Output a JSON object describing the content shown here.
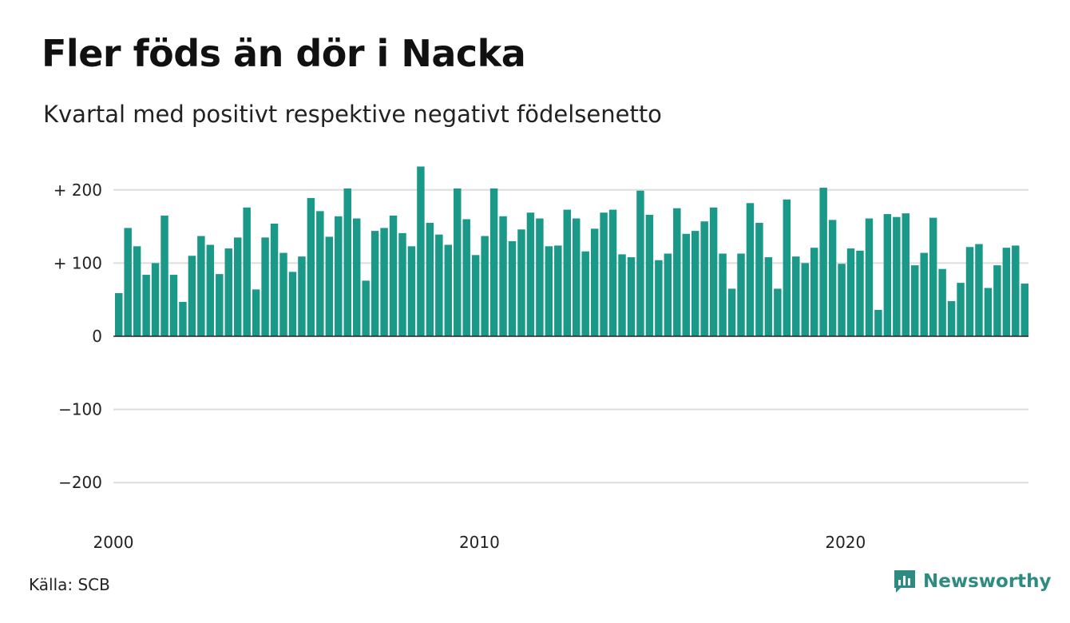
{
  "title": "Fler föds än dör i Nacka",
  "subtitle": "Kvartal med positivt respektive negativt födelsenetto",
  "source": "Källa: SCB",
  "brand": "Newsworthy",
  "colors": {
    "bar": "#1a9988",
    "grid": "#dddddd",
    "axis": "#222222",
    "brand": "#2e8b82"
  },
  "chart_data": {
    "type": "bar",
    "title": "Fler föds än dör i Nacka",
    "subtitle": "Kvartal med positivt respektive negativt födelsenetto",
    "xlabel": "",
    "ylabel": "",
    "ylim": [
      -250,
      250
    ],
    "yticks": [
      {
        "value": 200,
        "label": "+ 200"
      },
      {
        "value": 100,
        "label": "+ 100"
      },
      {
        "value": 0,
        "label": "0"
      },
      {
        "value": -100,
        "label": "−100"
      },
      {
        "value": -200,
        "label": "−200"
      }
    ],
    "xticks": [
      {
        "value": 2000,
        "label": "2000"
      },
      {
        "value": 2010,
        "label": "2010"
      },
      {
        "value": 2020,
        "label": "2020"
      }
    ],
    "xrange": [
      2000,
      2025
    ],
    "grid": true,
    "x": [
      "2000 Q1",
      "2000 Q2",
      "2000 Q3",
      "2000 Q4",
      "2001 Q1",
      "2001 Q2",
      "2001 Q3",
      "2001 Q4",
      "2002 Q1",
      "2002 Q2",
      "2002 Q3",
      "2002 Q4",
      "2003 Q1",
      "2003 Q2",
      "2003 Q3",
      "2003 Q4",
      "2004 Q1",
      "2004 Q2",
      "2004 Q3",
      "2004 Q4",
      "2005 Q1",
      "2005 Q2",
      "2005 Q3",
      "2005 Q4",
      "2006 Q1",
      "2006 Q2",
      "2006 Q3",
      "2006 Q4",
      "2007 Q1",
      "2007 Q2",
      "2007 Q3",
      "2007 Q4",
      "2008 Q1",
      "2008 Q2",
      "2008 Q3",
      "2008 Q4",
      "2009 Q1",
      "2009 Q2",
      "2009 Q3",
      "2009 Q4",
      "2010 Q1",
      "2010 Q2",
      "2010 Q3",
      "2010 Q4",
      "2011 Q1",
      "2011 Q2",
      "2011 Q3",
      "2011 Q4",
      "2012 Q1",
      "2012 Q2",
      "2012 Q3",
      "2012 Q4",
      "2013 Q1",
      "2013 Q2",
      "2013 Q3",
      "2013 Q4",
      "2014 Q1",
      "2014 Q2",
      "2014 Q3",
      "2014 Q4",
      "2015 Q1",
      "2015 Q2",
      "2015 Q3",
      "2015 Q4",
      "2016 Q1",
      "2016 Q2",
      "2016 Q3",
      "2016 Q4",
      "2017 Q1",
      "2017 Q2",
      "2017 Q3",
      "2017 Q4",
      "2018 Q1",
      "2018 Q2",
      "2018 Q3",
      "2018 Q4",
      "2019 Q1",
      "2019 Q2",
      "2019 Q3",
      "2019 Q4",
      "2020 Q1",
      "2020 Q2",
      "2020 Q3",
      "2020 Q4",
      "2021 Q1",
      "2021 Q2",
      "2021 Q3",
      "2021 Q4",
      "2022 Q1",
      "2022 Q2",
      "2022 Q3",
      "2022 Q4",
      "2023 Q1",
      "2023 Q2",
      "2023 Q3",
      "2023 Q4",
      "2024 Q1",
      "2024 Q2",
      "2024 Q3",
      "2024 Q4"
    ],
    "values": [
      59,
      148,
      123,
      84,
      100,
      165,
      84,
      47,
      110,
      137,
      125,
      85,
      120,
      135,
      176,
      64,
      135,
      154,
      114,
      88,
      109,
      189,
      171,
      136,
      164,
      202,
      161,
      76,
      144,
      148,
      165,
      141,
      123,
      232,
      155,
      139,
      125,
      202,
      160,
      111,
      137,
      202,
      164,
      130,
      146,
      169,
      161,
      123,
      124,
      173,
      161,
      116,
      147,
      169,
      173,
      112,
      108,
      199,
      166,
      104,
      113,
      175,
      140,
      144,
      157,
      176,
      113,
      65,
      113,
      182,
      155,
      108,
      65,
      187,
      109,
      100,
      121,
      203,
      159,
      99,
      120,
      117,
      161,
      36,
      167,
      163,
      168,
      97,
      114,
      162,
      92,
      48,
      73,
      122,
      126,
      66,
      97,
      121,
      124,
      72
    ]
  }
}
